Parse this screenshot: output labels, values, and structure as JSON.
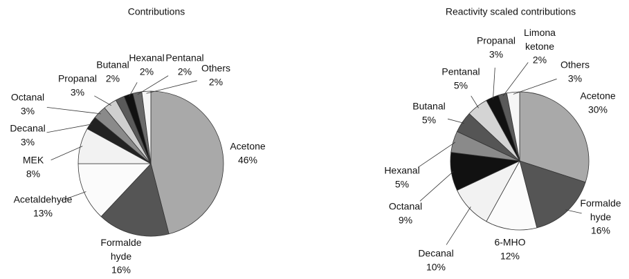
{
  "chart_data": [
    {
      "type": "pie",
      "title": "Contributions",
      "categories": [
        "Acetone",
        "Formalde\nhyde",
        "Acetaldehyde",
        "MEK",
        "Decanal",
        "Octanal",
        "Propanal",
        "Butanal",
        "Hexanal",
        "Pentanal",
        "Others"
      ],
      "values": [
        46,
        16,
        13,
        8,
        3,
        3,
        3,
        2,
        2,
        2,
        2
      ],
      "value_labels": [
        "46%",
        "16%",
        "13%",
        "8%",
        "3%",
        "3%",
        "3%",
        "2%",
        "2%",
        "2%",
        "2%"
      ],
      "colors": [
        "#a9a9a9",
        "#555555",
        "#fbfbfb",
        "#f2f2f2",
        "#222222",
        "#8a8a8a",
        "#cfcfcf",
        "#5a5a5a",
        "#111111",
        "#6a6a6a",
        "#f6f6f6"
      ]
    },
    {
      "type": "pie",
      "title": "Reactivity scaled contributions",
      "categories": [
        "Acetone",
        "Formalde\nhyde",
        "6-MHO",
        "Decanal",
        "Octanal",
        "Hexanal",
        "Butanal",
        "Pentanal",
        "Propanal",
        "Limona\nketone",
        "Others"
      ],
      "values": [
        30,
        16,
        12,
        10,
        9,
        5,
        5,
        5,
        3,
        2,
        3
      ],
      "value_labels": [
        "30%",
        "16%",
        "12%",
        "10%",
        "9%",
        "5%",
        "5%",
        "5%",
        "3%",
        "2%",
        "3%"
      ],
      "colors": [
        "#a9a9a9",
        "#555555",
        "#fbfbfb",
        "#f2f2f2",
        "#111111",
        "#8a8a8a",
        "#555555",
        "#d4d4d4",
        "#111111",
        "#5a5a5a",
        "#f6f6f6"
      ]
    }
  ]
}
